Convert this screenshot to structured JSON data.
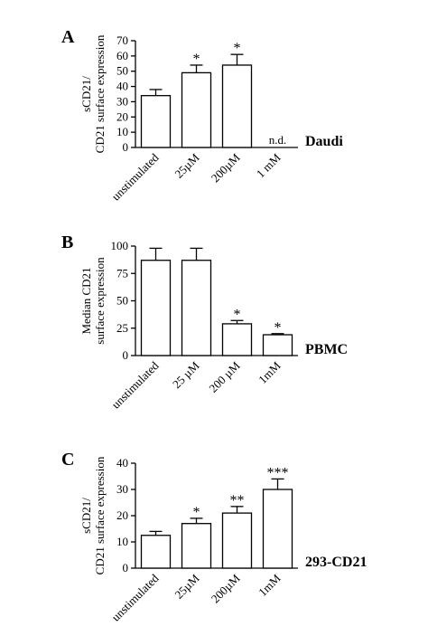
{
  "chart_data": [
    {
      "type": "bar",
      "panel": "A",
      "ylabel": [
        "sCD21/",
        "CD21 surface expression"
      ],
      "side_label": "Daudi",
      "categories": [
        "unstimulated",
        "25µM",
        "200µM",
        "1 mM"
      ],
      "values": [
        34,
        49,
        54,
        null
      ],
      "errors": [
        4,
        5,
        7,
        null
      ],
      "annotations": [
        null,
        "*",
        "*",
        "n.d."
      ],
      "ylim": [
        0,
        70
      ],
      "yticks": [
        0,
        10,
        20,
        30,
        40,
        50,
        60,
        70
      ],
      "color": "#ffffff"
    },
    {
      "type": "bar",
      "panel": "B",
      "ylabel": [
        "Median CD21",
        "surface expression"
      ],
      "side_label": "PBMC",
      "categories": [
        "unstimulated",
        "25 µM",
        "200 µM",
        "1mM"
      ],
      "values": [
        87,
        87,
        29,
        19
      ],
      "errors": [
        11,
        11,
        3,
        1
      ],
      "annotations": [
        null,
        null,
        "*",
        "*"
      ],
      "ylim": [
        0,
        100
      ],
      "yticks": [
        0,
        25,
        50,
        75,
        100
      ],
      "color": "#ffffff"
    },
    {
      "type": "bar",
      "panel": "C",
      "ylabel": [
        "sCD21/",
        "CD21 surface expression"
      ],
      "side_label": "293-CD21",
      "categories": [
        "unstimulated",
        "25µM",
        "200µM",
        "1mM"
      ],
      "values": [
        12.5,
        17,
        21,
        30
      ],
      "errors": [
        1.5,
        2,
        2.5,
        4
      ],
      "annotations": [
        null,
        "*",
        "**",
        "***"
      ],
      "ylim": [
        0,
        40
      ],
      "yticks": [
        0,
        10,
        20,
        30,
        40
      ],
      "color": "#ffffff"
    }
  ]
}
